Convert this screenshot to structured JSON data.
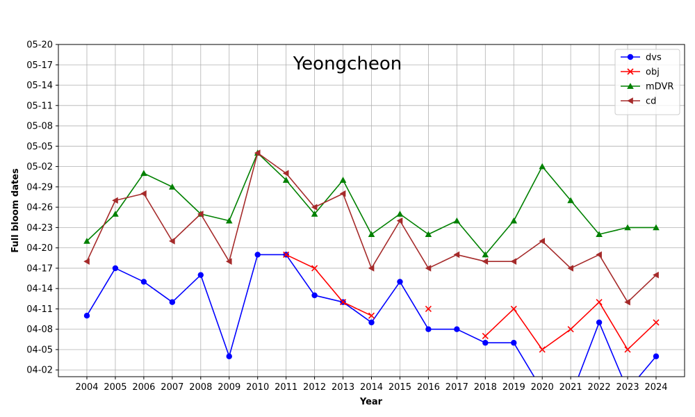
{
  "chart_data": {
    "type": "line",
    "title": "Yeongcheon",
    "xlabel": "Year",
    "ylabel": "Full bloom dates",
    "x": [
      2004,
      2005,
      2006,
      2007,
      2008,
      2009,
      2010,
      2011,
      2012,
      2013,
      2014,
      2015,
      2016,
      2017,
      2018,
      2019,
      2020,
      2021,
      2022,
      2023,
      2024
    ],
    "x_tick_labels": [
      "2004",
      "2005",
      "2006",
      "2007",
      "2008",
      "2009",
      "2010",
      "2011",
      "2012",
      "2013",
      "2014",
      "2015",
      "2016",
      "2017",
      "2018",
      "2019",
      "2020",
      "2021",
      "2022",
      "2023",
      "2024"
    ],
    "y_tick_labels": [
      "04-02",
      "04-05",
      "04-08",
      "04-11",
      "04-14",
      "04-17",
      "04-20",
      "04-23",
      "04-26",
      "04-29",
      "05-02",
      "05-05",
      "05-08",
      "05-11",
      "05-14",
      "05-17",
      "05-20"
    ],
    "ylim": [
      "04-01",
      "05-20"
    ],
    "grid": true,
    "legend_position": "top-right",
    "series": [
      {
        "name": "dvs",
        "color": "#0000ff",
        "marker": "circle",
        "values": [
          "04-10",
          "04-17",
          "04-15",
          "04-12",
          "04-16",
          "04-04",
          "04-19",
          "04-19",
          "04-13",
          "04-12",
          "04-09",
          "04-15",
          "04-08",
          "04-08",
          "04-06",
          "04-06",
          "03-30",
          "03-29",
          "04-09",
          "03-30",
          "04-04"
        ]
      },
      {
        "name": "obj",
        "color": "#ff0000",
        "marker": "x",
        "values": [
          null,
          null,
          null,
          null,
          null,
          null,
          null,
          "04-19",
          "04-17",
          "04-12",
          "04-10",
          null,
          "04-11",
          null,
          "04-07",
          "04-11",
          "04-05",
          "04-08",
          "04-12",
          "04-05",
          "04-09"
        ]
      },
      {
        "name": "mDVR",
        "color": "#008000",
        "marker": "triangle-up",
        "values": [
          "04-21",
          "04-25",
          "05-01",
          "04-29",
          "04-25",
          "04-24",
          "05-04",
          "04-30",
          "04-25",
          "04-30",
          "04-22",
          "04-25",
          "04-22",
          "04-24",
          "04-19",
          "04-24",
          "05-02",
          "04-27",
          "04-22",
          "04-23",
          "04-23"
        ]
      },
      {
        "name": "cd",
        "color": "#a52a2a",
        "marker": "triangle-left",
        "values": [
          "04-18",
          "04-27",
          "04-28",
          "04-21",
          "04-25",
          "04-18",
          "05-04",
          "05-01",
          "04-26",
          "04-28",
          "04-17",
          "04-24",
          "04-17",
          "04-19",
          "04-18",
          "04-18",
          "04-21",
          "04-17",
          "04-19",
          "04-12",
          "04-16"
        ]
      }
    ]
  }
}
